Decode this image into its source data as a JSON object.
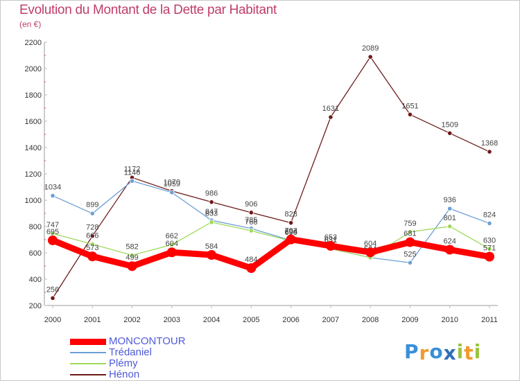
{
  "title": "Evolution du Montant de la Dette par Habitant",
  "subtitle": "(en €)",
  "chart_data": {
    "type": "line",
    "categories": [
      "2000",
      "2001",
      "2002",
      "2003",
      "2004",
      "2005",
      "2006",
      "2007",
      "2008",
      "2009",
      "2010",
      "2011"
    ],
    "ylim": [
      200,
      2200
    ],
    "yticks": [
      200,
      400,
      600,
      800,
      1000,
      1200,
      1400,
      1600,
      1800,
      2000,
      2200
    ],
    "grid": false,
    "legend_position": "bottom-left",
    "series": [
      {
        "name": "MONCONTOUR",
        "color": "#ff0000",
        "values": [
          695,
          573,
          499,
          604,
          584,
          484,
          702,
          653,
          604,
          681,
          624,
          571
        ]
      },
      {
        "name": "Trédaniel",
        "color": "#6b9fd4",
        "values": [
          1034,
          899,
          1146,
          1059,
          847,
          785,
          694,
          631,
          564,
          525,
          936,
          824
        ]
      },
      {
        "name": "Plémy",
        "color": "#9ed95a",
        "values": [
          747,
          666,
          582,
          662,
          833,
          768,
          690,
          631,
          564,
          759,
          801,
          630
        ]
      },
      {
        "name": "Hénon",
        "color": "#6e1a1a",
        "values": [
          256,
          728,
          1172,
          1070,
          986,
          906,
          828,
          1631,
          2089,
          1651,
          1509,
          1368
        ]
      }
    ]
  },
  "logo": {
    "text": "Proxiti",
    "letters": [
      "P",
      "r",
      "o",
      "x",
      "i",
      "t",
      "i"
    ],
    "colors": [
      "#3a8fd8",
      "#f29a2e",
      "#3a8fd8",
      "#2d6fb8",
      "#9ac33c",
      "#f29a2e",
      "#9ac33c"
    ]
  }
}
